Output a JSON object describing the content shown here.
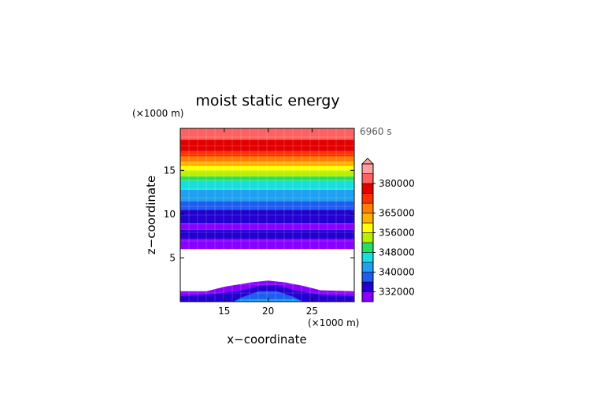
{
  "chart_data": {
    "type": "heatmap",
    "title": "moist static energy",
    "time_label": "6960 s",
    "xlabel": "x−coordinate",
    "ylabel": "z−coordinate",
    "x_unit": "(×1000 m)",
    "y_unit": "(×1000 m)",
    "xlim": [
      10,
      29.8
    ],
    "ylim": [
      0,
      19.8
    ],
    "x_ticks": [
      15,
      20,
      25
    ],
    "x_tick_labels": [
      "15",
      "20",
      "25"
    ],
    "y_ticks": [
      5,
      10,
      15
    ],
    "y_tick_labels": [
      "5",
      "10",
      "15"
    ],
    "colorbar": {
      "levels": [
        328000,
        332000,
        336000,
        340000,
        344000,
        348000,
        352000,
        356000,
        360000,
        365000,
        370000,
        375000,
        380000,
        385000
      ],
      "labels": [
        "332000",
        "340000",
        "348000",
        "356000",
        "365000",
        "380000"
      ],
      "colors": [
        "#8a00ff",
        "#2200d0",
        "#1f5cf0",
        "#1fa0f0",
        "#18dfdf",
        "#22e066",
        "#b8f000",
        "#ffff00",
        "#ffb000",
        "#ff8000",
        "#ff3000",
        "#e30000",
        "#ff6060",
        "#ffa0a0"
      ],
      "extend": "max"
    },
    "upper_layers": [
      {
        "z0": 6.0,
        "z1": 7.2,
        "value": 330000
      },
      {
        "z0": 7.2,
        "z1": 8.2,
        "value": 334000
      },
      {
        "z0": 8.2,
        "z1": 9.0,
        "value": 331000
      },
      {
        "z0": 9.0,
        "z1": 10.5,
        "value": 335000
      },
      {
        "z0": 10.5,
        "z1": 11.5,
        "value": 337000
      },
      {
        "z0": 11.5,
        "z1": 12.8,
        "value": 341000
      },
      {
        "z0": 12.8,
        "z1": 13.8,
        "value": 345000
      },
      {
        "z0": 13.8,
        "z1": 14.3,
        "value": 349000
      },
      {
        "z0": 14.3,
        "z1": 15.0,
        "value": 353000
      },
      {
        "z0": 15.0,
        "z1": 15.5,
        "value": 358000
      },
      {
        "z0": 15.5,
        "z1": 16.0,
        "value": 362000
      },
      {
        "z0": 16.0,
        "z1": 16.6,
        "value": 367000
      },
      {
        "z0": 16.6,
        "z1": 17.2,
        "value": 372000
      },
      {
        "z0": 17.2,
        "z1": 18.5,
        "value": 377000
      },
      {
        "z0": 18.5,
        "z1": 19.8,
        "value": 383000
      }
    ],
    "boundary_layer": [
      {
        "value": 330000,
        "profile": [
          [
            10,
            0
          ],
          [
            10,
            1.2
          ],
          [
            13,
            1.2
          ],
          [
            15,
            1.7
          ],
          [
            18,
            2.2
          ],
          [
            20,
            2.4
          ],
          [
            22,
            2.2
          ],
          [
            24,
            1.8
          ],
          [
            26,
            1.3
          ],
          [
            29.8,
            1.2
          ],
          [
            29.8,
            0
          ]
        ]
      },
      {
        "value": 334000,
        "profile": [
          [
            10,
            0
          ],
          [
            10,
            0.6
          ],
          [
            14,
            0.9
          ],
          [
            17,
            1.3
          ],
          [
            19,
            1.8
          ],
          [
            21,
            1.9
          ],
          [
            23,
            1.3
          ],
          [
            26,
            0.8
          ],
          [
            29.8,
            0.6
          ],
          [
            29.8,
            0
          ]
        ]
      },
      {
        "value": 339000,
        "profile": [
          [
            16,
            0
          ],
          [
            17,
            0.5
          ],
          [
            19,
            1.2
          ],
          [
            21,
            1.2
          ],
          [
            23,
            0.5
          ],
          [
            24,
            0
          ]
        ]
      },
      {
        "value": 343000,
        "profile": [
          [
            16,
            0
          ],
          [
            17,
            0.3
          ],
          [
            23,
            0.3
          ],
          [
            24,
            0
          ]
        ]
      }
    ]
  }
}
